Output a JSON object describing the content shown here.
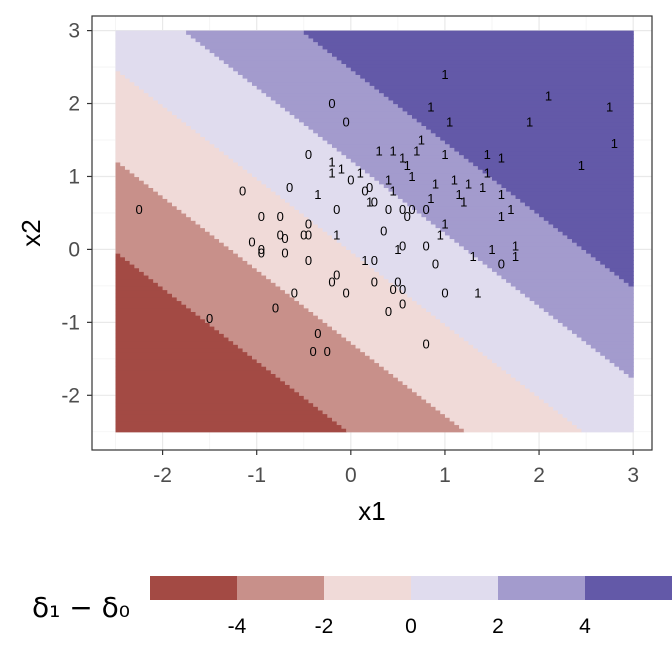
{
  "chart_data": {
    "type": "scatter",
    "subtype": "decision-region contour with text-labeled points",
    "xlabel": "x1",
    "ylabel": "x2",
    "xlim": [
      -2.75,
      3.2
    ],
    "ylim": [
      -2.75,
      3.2
    ],
    "x_ticks": [
      -2,
      -1,
      0,
      1,
      2,
      3
    ],
    "y_ticks": [
      -2,
      -1,
      0,
      1,
      2,
      3
    ],
    "x_tick_labels": [
      "-2",
      "-1",
      "0",
      "1",
      "2",
      "3"
    ],
    "y_tick_labels": [
      "-2",
      "-1",
      "0",
      "1",
      "2",
      "3"
    ],
    "grid": true,
    "region": {
      "x_range": [
        -2.5,
        3.0
      ],
      "y_range": [
        -2.5,
        3.0
      ],
      "value_function": "1.6*x1 + 1.6*x2",
      "bins": [
        {
          "from": -6,
          "to": -4,
          "color": "#a34a44"
        },
        {
          "from": -4,
          "to": -2,
          "color": "#c8908a"
        },
        {
          "from": -2,
          "to": 0,
          "color": "#f0dad8"
        },
        {
          "from": 0,
          "to": 2,
          "color": "#e0dcee"
        },
        {
          "from": 2,
          "to": 4,
          "color": "#a39bcd"
        },
        {
          "from": 4,
          "to": 6,
          "color": "#6359a8"
        }
      ]
    },
    "legend": {
      "title": "δ₁ − δ₀",
      "position": "bottom",
      "tick_values": [
        -4,
        -2,
        0,
        2,
        4
      ],
      "tick_labels": [
        "-4",
        "-2",
        "0",
        "2",
        "4"
      ]
    },
    "points": [
      {
        "x": 1.0,
        "y": 2.4,
        "label": "1"
      },
      {
        "x": 2.1,
        "y": 2.1,
        "label": "1"
      },
      {
        "x": 0.85,
        "y": 1.95,
        "label": "1"
      },
      {
        "x": 2.75,
        "y": 1.95,
        "label": "1"
      },
      {
        "x": 1.05,
        "y": 1.75,
        "label": "1"
      },
      {
        "x": 1.9,
        "y": 1.75,
        "label": "1"
      },
      {
        "x": 2.8,
        "y": 1.45,
        "label": "1"
      },
      {
        "x": 0.75,
        "y": 1.5,
        "label": "1"
      },
      {
        "x": 0.3,
        "y": 1.35,
        "label": "1"
      },
      {
        "x": 0.45,
        "y": 1.35,
        "label": "1"
      },
      {
        "x": 0.7,
        "y": 1.35,
        "label": "1"
      },
      {
        "x": 0.55,
        "y": 1.25,
        "label": "1"
      },
      {
        "x": 1.0,
        "y": 1.3,
        "label": "1"
      },
      {
        "x": 1.45,
        "y": 1.3,
        "label": "1"
      },
      {
        "x": 1.6,
        "y": 1.25,
        "label": "1"
      },
      {
        "x": 0.6,
        "y": 1.15,
        "label": "1"
      },
      {
        "x": 2.45,
        "y": 1.15,
        "label": "1"
      },
      {
        "x": -0.1,
        "y": 1.1,
        "label": "1"
      },
      {
        "x": 0.1,
        "y": 1.05,
        "label": "1"
      },
      {
        "x": 0.4,
        "y": 0.95,
        "label": "1"
      },
      {
        "x": 0.65,
        "y": 1.0,
        "label": "1"
      },
      {
        "x": 1.1,
        "y": 0.95,
        "label": "1"
      },
      {
        "x": 1.45,
        "y": 1.05,
        "label": "1"
      },
      {
        "x": 1.25,
        "y": 0.9,
        "label": "1"
      },
      {
        "x": 0.9,
        "y": 0.9,
        "label": "1"
      },
      {
        "x": 1.4,
        "y": 0.85,
        "label": "1"
      },
      {
        "x": 1.15,
        "y": 0.75,
        "label": "1"
      },
      {
        "x": 0.85,
        "y": 0.7,
        "label": "1"
      },
      {
        "x": 0.45,
        "y": 0.8,
        "label": "1"
      },
      {
        "x": -0.35,
        "y": 0.75,
        "label": "1"
      },
      {
        "x": 0.2,
        "y": 0.65,
        "label": "1"
      },
      {
        "x": 1.2,
        "y": 0.65,
        "label": "1"
      },
      {
        "x": 1.6,
        "y": 0.75,
        "label": "1"
      },
      {
        "x": 1.6,
        "y": 0.45,
        "label": "1"
      },
      {
        "x": 1.7,
        "y": 0.55,
        "label": "1"
      },
      {
        "x": 1.0,
        "y": 0.35,
        "label": "1"
      },
      {
        "x": 0.95,
        "y": 0.2,
        "label": "1"
      },
      {
        "x": -0.15,
        "y": 0.2,
        "label": "1"
      },
      {
        "x": 0.5,
        "y": 0.0,
        "label": "1"
      },
      {
        "x": 1.5,
        "y": 0.0,
        "label": "1"
      },
      {
        "x": 1.75,
        "y": 0.05,
        "label": "1"
      },
      {
        "x": 1.3,
        "y": -0.1,
        "label": "1"
      },
      {
        "x": 1.75,
        "y": -0.1,
        "label": "1"
      },
      {
        "x": 0.15,
        "y": -0.15,
        "label": "1"
      },
      {
        "x": 1.35,
        "y": -0.6,
        "label": "1"
      },
      {
        "x": -0.2,
        "y": 1.05,
        "label": "1"
      },
      {
        "x": -0.2,
        "y": 1.2,
        "label": "1"
      },
      {
        "x": -0.2,
        "y": 2.0,
        "label": "0"
      },
      {
        "x": -0.05,
        "y": 1.75,
        "label": "0"
      },
      {
        "x": -0.45,
        "y": 1.3,
        "label": "0"
      },
      {
        "x": -0.65,
        "y": 0.85,
        "label": "0"
      },
      {
        "x": -1.15,
        "y": 0.8,
        "label": "0"
      },
      {
        "x": 0.0,
        "y": 0.95,
        "label": "0"
      },
      {
        "x": 0.2,
        "y": 0.85,
        "label": "0"
      },
      {
        "x": 0.15,
        "y": 0.8,
        "label": "0"
      },
      {
        "x": 0.25,
        "y": 0.65,
        "label": "0"
      },
      {
        "x": -2.25,
        "y": 0.55,
        "label": "0"
      },
      {
        "x": -0.15,
        "y": 0.55,
        "label": "0"
      },
      {
        "x": 0.55,
        "y": 0.55,
        "label": "0"
      },
      {
        "x": 0.65,
        "y": 0.55,
        "label": "0"
      },
      {
        "x": 0.8,
        "y": 0.55,
        "label": "0"
      },
      {
        "x": 0.6,
        "y": 0.45,
        "label": "0"
      },
      {
        "x": 0.4,
        "y": 0.55,
        "label": "0"
      },
      {
        "x": -0.95,
        "y": 0.45,
        "label": "0"
      },
      {
        "x": -0.75,
        "y": 0.45,
        "label": "0"
      },
      {
        "x": -0.45,
        "y": 0.35,
        "label": "0"
      },
      {
        "x": 0.35,
        "y": 0.25,
        "label": "0"
      },
      {
        "x": -0.75,
        "y": 0.2,
        "label": "0"
      },
      {
        "x": -0.7,
        "y": 0.15,
        "label": "0"
      },
      {
        "x": -0.5,
        "y": 0.2,
        "label": "0"
      },
      {
        "x": -0.45,
        "y": 0.2,
        "label": "0"
      },
      {
        "x": -1.05,
        "y": 0.1,
        "label": "0"
      },
      {
        "x": -0.95,
        "y": 0.0,
        "label": "0"
      },
      {
        "x": -0.95,
        "y": -0.05,
        "label": "0"
      },
      {
        "x": -0.7,
        "y": -0.05,
        "label": "0"
      },
      {
        "x": 0.55,
        "y": 0.05,
        "label": "0"
      },
      {
        "x": 0.8,
        "y": 0.05,
        "label": "0"
      },
      {
        "x": -0.45,
        "y": -0.15,
        "label": "0"
      },
      {
        "x": 0.25,
        "y": -0.15,
        "label": "0"
      },
      {
        "x": 0.9,
        "y": -0.2,
        "label": "0"
      },
      {
        "x": 1.6,
        "y": -0.2,
        "label": "0"
      },
      {
        "x": -0.15,
        "y": -0.35,
        "label": "0"
      },
      {
        "x": -0.2,
        "y": -0.45,
        "label": "0"
      },
      {
        "x": 0.25,
        "y": -0.45,
        "label": "0"
      },
      {
        "x": 0.5,
        "y": -0.45,
        "label": "0"
      },
      {
        "x": 0.45,
        "y": -0.55,
        "label": "0"
      },
      {
        "x": 0.55,
        "y": -0.55,
        "label": "0"
      },
      {
        "x": -0.6,
        "y": -0.6,
        "label": "0"
      },
      {
        "x": -0.05,
        "y": -0.6,
        "label": "0"
      },
      {
        "x": 1.0,
        "y": -0.6,
        "label": "0"
      },
      {
        "x": 0.55,
        "y": -0.75,
        "label": "0"
      },
      {
        "x": -0.8,
        "y": -0.8,
        "label": "0"
      },
      {
        "x": 0.4,
        "y": -0.85,
        "label": "0"
      },
      {
        "x": -1.5,
        "y": -0.95,
        "label": "0"
      },
      {
        "x": -0.35,
        "y": -1.15,
        "label": "0"
      },
      {
        "x": -0.4,
        "y": -1.4,
        "label": "0"
      },
      {
        "x": -0.25,
        "y": -1.4,
        "label": "0"
      },
      {
        "x": 0.8,
        "y": -1.3,
        "label": "0"
      }
    ]
  }
}
